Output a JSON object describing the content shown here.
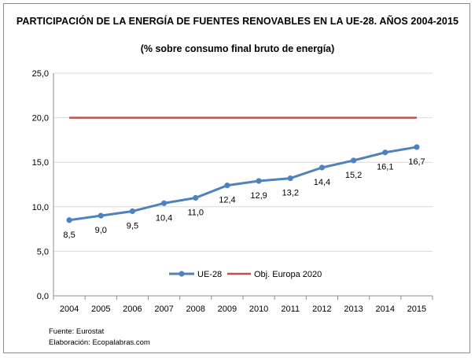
{
  "chart_data": {
    "type": "line",
    "title": "PARTICIPACIÓN DE LA ENERGÍA DE FUENTES RENOVABLES EN LA UE-28. AÑOS 2004-2015",
    "subtitle": "(% sobre consumo final bruto de energía)",
    "categories": [
      "2004",
      "2005",
      "2006",
      "2007",
      "2008",
      "2009",
      "2010",
      "2011",
      "2012",
      "2013",
      "2014",
      "2015"
    ],
    "series": [
      {
        "name": "UE-28",
        "values": [
          8.5,
          9.0,
          9.5,
          10.4,
          11.0,
          12.4,
          12.9,
          13.2,
          14.4,
          15.2,
          16.1,
          16.7
        ],
        "labels": [
          "8,5",
          "9,0",
          "9,5",
          "10,4",
          "11,0",
          "12,4",
          "12,9",
          "13,2",
          "14,4",
          "15,2",
          "16,1",
          "16,7"
        ],
        "color": "#4f81bd"
      },
      {
        "name": "Obj. Europa 2020",
        "values": [
          20,
          20,
          20,
          20,
          20,
          20,
          20,
          20,
          20,
          20,
          20,
          20
        ],
        "color": "#c0504d"
      }
    ],
    "ylim": [
      0,
      25
    ],
    "yticks": [
      "0,0",
      "5,0",
      "10,0",
      "15,0",
      "20,0",
      "25,0"
    ],
    "grid": true,
    "legend": "bottom-center"
  },
  "footer": {
    "source": "Fuente: Eurostat",
    "credit": "Elaboración: Ecopalabras.com"
  }
}
